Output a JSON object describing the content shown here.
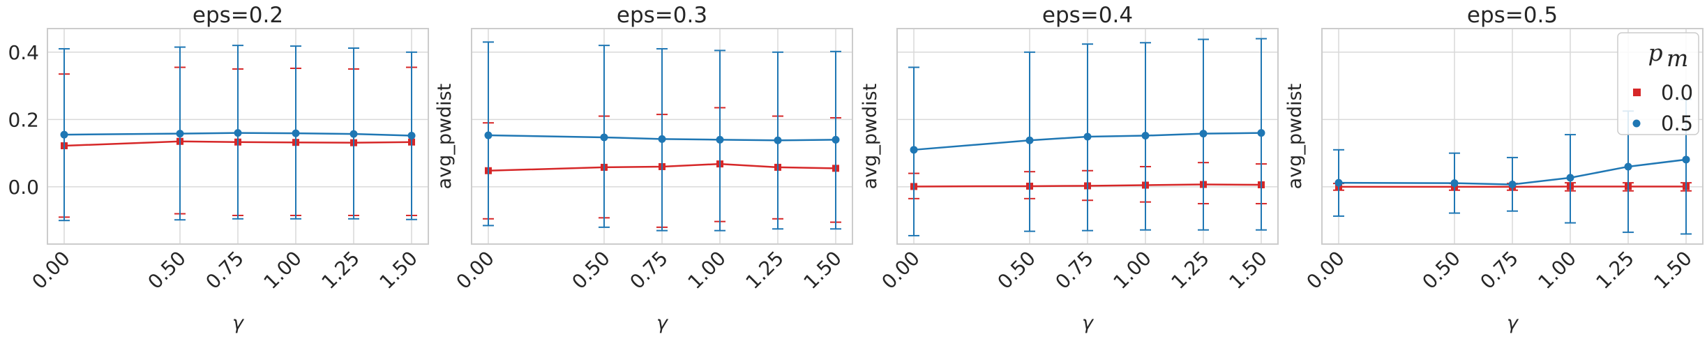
{
  "chart_data": {
    "type": "line",
    "colors": {
      "pm_0.0": "#d62728",
      "pm_0.5": "#1f77b4",
      "grid": "#d9d9d9",
      "frame": "#cccccc"
    },
    "ylim": [
      -0.17,
      0.47
    ],
    "yticks": [
      0.0,
      0.2,
      0.4
    ],
    "ytick_labels": [
      "0.0",
      "0.2",
      "0.4"
    ],
    "x": [
      0.0,
      0.5,
      0.75,
      1.0,
      1.25,
      1.5
    ],
    "xtick_labels": [
      "0.00",
      "0.50",
      "0.75",
      "1.00",
      "1.25",
      "1.50"
    ],
    "xlabel": "γ",
    "ylabel": "avg_pwdist",
    "grid": true,
    "legend": {
      "title": "p",
      "title_sub": "m",
      "placement": "top-right",
      "panel": 3,
      "entries": [
        {
          "label": "0.0",
          "marker": "square",
          "series": "pm_0.0"
        },
        {
          "label": "0.5",
          "marker": "circle",
          "series": "pm_0.5"
        }
      ]
    },
    "panels": [
      {
        "title": "eps=0.2",
        "show_ytick_labels": true,
        "series": [
          {
            "key": "pm_0.0",
            "marker": "square",
            "y": [
              0.122,
              0.135,
              0.133,
              0.132,
              0.131,
              0.133
            ],
            "lower": [
              -0.09,
              -0.08,
              -0.085,
              -0.085,
              -0.085,
              -0.085
            ],
            "upper": [
              0.335,
              0.355,
              0.35,
              0.352,
              0.35,
              0.355
            ]
          },
          {
            "key": "pm_0.5",
            "marker": "circle",
            "y": [
              0.155,
              0.158,
              0.16,
              0.159,
              0.157,
              0.152
            ],
            "lower": [
              -0.1,
              -0.098,
              -0.095,
              -0.095,
              -0.095,
              -0.097
            ],
            "upper": [
              0.41,
              0.415,
              0.42,
              0.418,
              0.412,
              0.4
            ]
          }
        ]
      },
      {
        "title": "eps=0.3",
        "show_ytick_labels": false,
        "series": [
          {
            "key": "pm_0.0",
            "marker": "square",
            "y": [
              0.048,
              0.058,
              0.06,
              0.068,
              0.058,
              0.055
            ],
            "lower": [
              -0.095,
              -0.092,
              -0.12,
              -0.103,
              -0.095,
              -0.105
            ],
            "upper": [
              0.19,
              0.21,
              0.215,
              0.235,
              0.21,
              0.205
            ]
          },
          {
            "key": "pm_0.5",
            "marker": "circle",
            "y": [
              0.153,
              0.147,
              0.142,
              0.14,
              0.138,
              0.14
            ],
            "lower": [
              -0.115,
              -0.12,
              -0.13,
              -0.13,
              -0.125,
              -0.125
            ],
            "upper": [
              0.43,
              0.42,
              0.41,
              0.405,
              0.4,
              0.402
            ]
          }
        ]
      },
      {
        "title": "eps=0.4",
        "show_ytick_labels": false,
        "series": [
          {
            "key": "pm_0.0",
            "marker": "square",
            "y": [
              0.001,
              0.002,
              0.003,
              0.005,
              0.007,
              0.006
            ],
            "lower": [
              -0.035,
              -0.035,
              -0.04,
              -0.045,
              -0.05,
              -0.05
            ],
            "upper": [
              0.04,
              0.045,
              0.048,
              0.06,
              0.072,
              0.068
            ]
          },
          {
            "key": "pm_0.5",
            "marker": "circle",
            "y": [
              0.11,
              0.138,
              0.149,
              0.152,
              0.158,
              0.16
            ],
            "lower": [
              -0.145,
              -0.132,
              -0.13,
              -0.128,
              -0.128,
              -0.128
            ],
            "upper": [
              0.355,
              0.4,
              0.424,
              0.428,
              0.438,
              0.44
            ]
          }
        ]
      },
      {
        "title": "eps=0.5",
        "show_ytick_labels": false,
        "series": [
          {
            "key": "pm_0.0",
            "marker": "square",
            "y": [
              0.0,
              0.0,
              0.0,
              0.001,
              0.001,
              0.001
            ],
            "lower": [
              -0.01,
              -0.01,
              -0.01,
              -0.012,
              -0.012,
              -0.012
            ],
            "upper": [
              0.01,
              0.01,
              0.01,
              0.012,
              0.012,
              0.012
            ]
          },
          {
            "key": "pm_0.5",
            "marker": "circle",
            "y": [
              0.012,
              0.011,
              0.007,
              0.027,
              0.06,
              0.081
            ],
            "lower": [
              -0.087,
              -0.078,
              -0.072,
              -0.107,
              -0.135,
              -0.14
            ],
            "upper": [
              0.11,
              0.1,
              0.087,
              0.155,
              0.225,
              0.26
            ]
          }
        ]
      }
    ]
  }
}
